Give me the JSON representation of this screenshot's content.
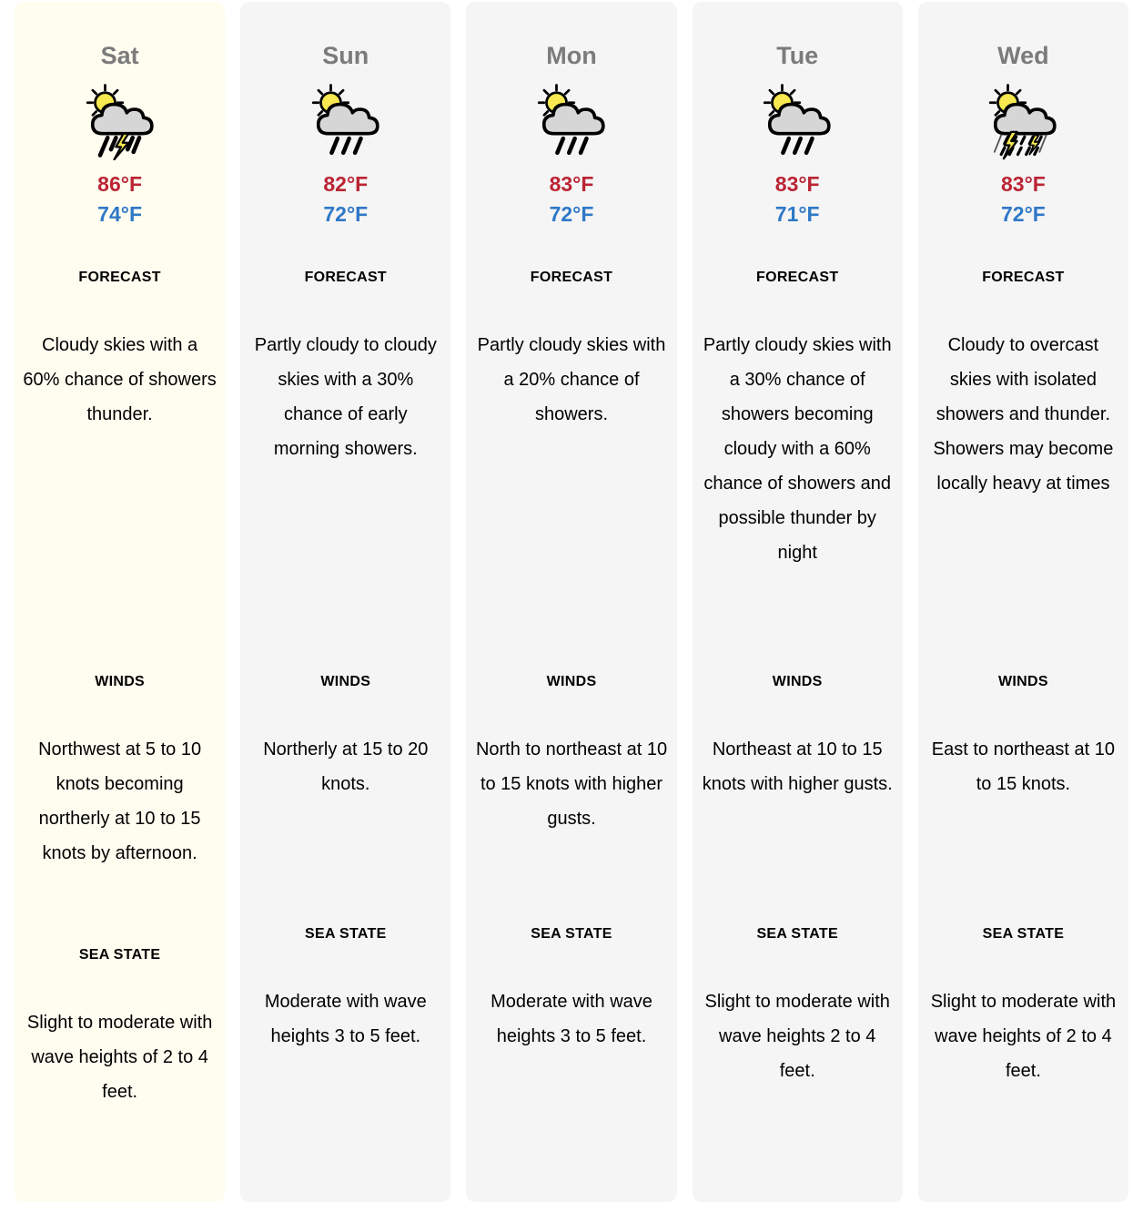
{
  "section_labels": {
    "forecast": "FORECAST",
    "winds": "WINDS",
    "sea_state": "SEA STATE"
  },
  "colors": {
    "highlight_card_bg": "#fffdf0",
    "card_bg": "#f5f5f5",
    "day_label": "#7b7b7b",
    "high_temp": "#bb2434",
    "low_temp": "#2e78c7",
    "body_text": "#000000"
  },
  "days": [
    {
      "day": "Sat",
      "icon": "sun-thunder-showers-icon",
      "high": "86°F",
      "low": "74°F",
      "highlighted": true,
      "forecast": "Cloudy skies with a 60% chance of showers thunder.",
      "winds": "Northwest at 5 to 10 knots becoming northerly at 10 to 15 knots by afternoon.",
      "sea_state": "Slight to moderate with wave heights of 2 to 4 feet."
    },
    {
      "day": "Sun",
      "icon": "sun-showers-icon",
      "high": "82°F",
      "low": "72°F",
      "highlighted": false,
      "forecast": "Partly cloudy to cloudy skies with a 30% chance of early morning showers.",
      "winds": "Northerly at 15 to 20 knots.",
      "sea_state": "Moderate with wave heights 3 to 5 feet."
    },
    {
      "day": "Mon",
      "icon": "sun-showers-icon",
      "high": "83°F",
      "low": "72°F",
      "highlighted": false,
      "forecast": "Partly cloudy skies with a 20% chance of showers.",
      "winds": "North to northeast at 10 to 15 knots with higher gusts.",
      "sea_state": "Moderate with wave heights 3 to 5 feet."
    },
    {
      "day": "Tue",
      "icon": "sun-showers-icon",
      "high": "83°F",
      "low": "71°F",
      "highlighted": false,
      "forecast": "Partly cloudy skies with a 30% chance of showers becoming cloudy with a 60% chance of showers and possible thunder by night",
      "winds": "Northeast at 10 to 15 knots with higher gusts.",
      "sea_state": "Slight to moderate with wave heights 2 to 4 feet."
    },
    {
      "day": "Wed",
      "icon": "sun-heavy-thunderstorm-icon",
      "high": "83°F",
      "low": "72°F",
      "highlighted": false,
      "forecast": "Cloudy to overcast skies with isolated showers and thunder. Showers may become locally heavy at times",
      "winds": "East to northeast at 10 to 15 knots.",
      "sea_state": "Slight to moderate with wave heights of 2 to 4 feet."
    }
  ]
}
